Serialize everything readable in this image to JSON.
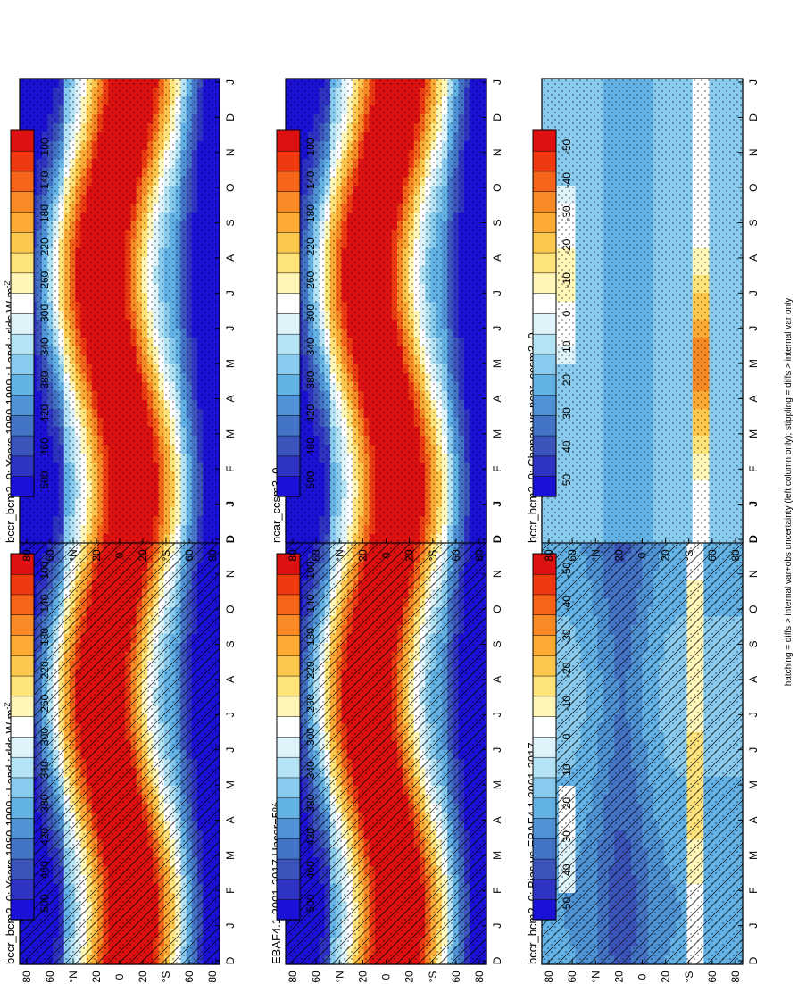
{
  "figure": {
    "footnote": "hatching = diffs > internal var+obs uncertainty (left column only); stippling = diffs > internal var only"
  },
  "colors": {
    "abs_scale": [
      "#dd1111",
      "#ee3a10",
      "#f4651a",
      "#f88a25",
      "#fbab35",
      "#fdc74e",
      "#fee27a",
      "#fff6b8",
      "#ffffff",
      "#dff3fb",
      "#b4e3f5",
      "#88cbef",
      "#63b2e6",
      "#4f93d6",
      "#4474c6",
      "#3b55bc",
      "#2f33c4",
      "#1a10d6"
    ],
    "diff_scale": [
      "#dd1111",
      "#ee3a10",
      "#f4651a",
      "#f88a25",
      "#fbab35",
      "#fdc74e",
      "#fee27a",
      "#fff6b8",
      "#ffffff",
      "#dff3fb",
      "#b4e3f5",
      "#88cbef",
      "#63b2e6",
      "#4f93d6",
      "#4474c6",
      "#3b55bc",
      "#2f33c4",
      "#1a10d6"
    ]
  },
  "chart_data": [
    {
      "type": "heatmap",
      "panel": "left-top",
      "title": "bccr_bcm2_0: Years 1980-1999 : Land : rlds W m",
      "title_sup": "-2",
      "x_ticks": [
        "D",
        "J",
        "F",
        "M",
        "A",
        "M",
        "J",
        "J",
        "A",
        "S",
        "O",
        "N",
        "D",
        "J"
      ],
      "y_ticks": [
        "80",
        "60",
        "°N",
        "20",
        "0",
        "20",
        "°S",
        "60",
        "80"
      ],
      "colorbar_ticks": [
        "500",
        "460",
        "420",
        "380",
        "340",
        "300",
        "260",
        "220",
        "180",
        "140",
        "100"
      ],
      "value_range": [
        100,
        500
      ],
      "hatching": true,
      "stippling": true
    },
    {
      "type": "heatmap",
      "panel": "right-top",
      "title": "bccr_bcm2_0: Years 1980-1999 : Land : rlds W m",
      "title_sup": "-2",
      "x_ticks": [
        "D",
        "J",
        "F",
        "M",
        "A",
        "M",
        "J",
        "J",
        "A",
        "S",
        "O",
        "N",
        "D",
        "J"
      ],
      "y_ticks": [
        "80",
        "60",
        "°N",
        "20",
        "0",
        "20",
        "°S",
        "60",
        "80"
      ],
      "colorbar_ticks": [
        "500",
        "460",
        "420",
        "380",
        "340",
        "300",
        "260",
        "220",
        "180",
        "140",
        "100"
      ],
      "value_range": [
        100,
        500
      ],
      "hatching": false,
      "stippling": true
    },
    {
      "type": "heatmap",
      "panel": "left-middle",
      "title": "EBAF4.1 2001-2017 Uncer=5%",
      "title_sup": "",
      "x_ticks": [
        "D",
        "J",
        "F",
        "M",
        "A",
        "M",
        "J",
        "J",
        "A",
        "S",
        "O",
        "N",
        "D",
        "J"
      ],
      "y_ticks": [
        "80",
        "60",
        "°N",
        "20",
        "0",
        "20",
        "°S",
        "60",
        "80"
      ],
      "colorbar_ticks": [
        "500",
        "460",
        "420",
        "380",
        "340",
        "300",
        "260",
        "220",
        "180",
        "140",
        "100"
      ],
      "value_range": [
        100,
        500
      ],
      "hatching": true,
      "stippling": true
    },
    {
      "type": "heatmap",
      "panel": "right-middle",
      "title": "ncar_ccsm3_0",
      "title_sup": "",
      "x_ticks": [
        "D",
        "J",
        "F",
        "M",
        "A",
        "M",
        "J",
        "J",
        "A",
        "S",
        "O",
        "N",
        "D",
        "J"
      ],
      "y_ticks": [
        "80",
        "60",
        "°N",
        "20",
        "0",
        "20",
        "°S",
        "60",
        "80"
      ],
      "colorbar_ticks": [
        "500",
        "460",
        "420",
        "380",
        "340",
        "300",
        "260",
        "220",
        "180",
        "140",
        "100"
      ],
      "value_range": [
        100,
        500
      ],
      "hatching": false,
      "stippling": true
    },
    {
      "type": "heatmap",
      "panel": "left-bottom",
      "title": "bccr_bcm2_0: Bias vs EBAF4.1 2001-2017",
      "title_sup": "",
      "x_ticks": [
        "D",
        "J",
        "F",
        "M",
        "A",
        "M",
        "J",
        "J",
        "A",
        "S",
        "O",
        "N",
        "D",
        "J"
      ],
      "y_ticks": [
        "80",
        "60",
        "°N",
        "20",
        "0",
        "20",
        "°S",
        "60",
        "80"
      ],
      "colorbar_ticks": [
        "50",
        "40",
        "30",
        "20",
        "10",
        "0",
        "-10",
        "-20",
        "-30",
        "-40",
        "-50"
      ],
      "value_range": [
        -50,
        50
      ],
      "hatching": true,
      "stippling": true
    },
    {
      "type": "heatmap",
      "panel": "right-bottom",
      "title": "bccr_bcm2_0: Change vs ncar_ccsm3_0",
      "title_sup": "",
      "x_ticks": [
        "D",
        "J",
        "F",
        "M",
        "A",
        "M",
        "J",
        "J",
        "A",
        "S",
        "O",
        "N",
        "D",
        "J"
      ],
      "y_ticks": [
        "80",
        "60",
        "°N",
        "20",
        "0",
        "20",
        "°S",
        "60",
        "80"
      ],
      "colorbar_ticks": [
        "50",
        "40",
        "30",
        "20",
        "10",
        "0",
        "-10",
        "-20",
        "-30",
        "-40",
        "-50"
      ],
      "value_range": [
        -50,
        50
      ],
      "hatching": false,
      "stippling": true
    }
  ]
}
